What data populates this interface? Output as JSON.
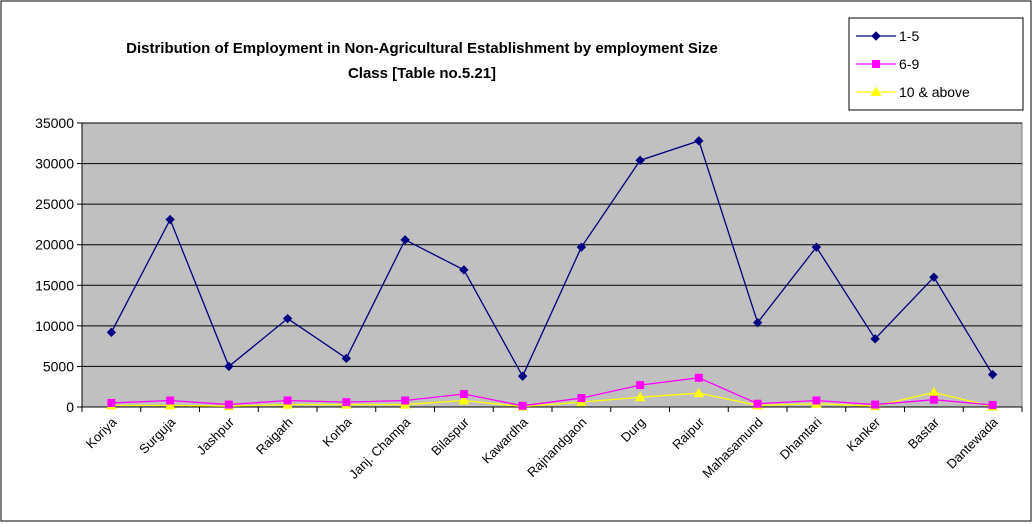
{
  "chart_data": {
    "type": "line",
    "title_line1": "Distribution of Employment in Non-Agricultural Establishment by employment Size",
    "title_line2": "Class [Table no.5.21]",
    "xlabel": "",
    "ylabel": "",
    "categories": [
      "Koriya",
      "Surguja",
      "Jashpur",
      "Raigarh",
      "Korba",
      "Janj. Champa",
      "Bilaspur",
      "Kawardha",
      "Rajnandgaon",
      "Durg",
      "Raipur",
      "Mahasamund",
      "Dhamtari",
      "Kanker",
      "Bastar",
      "Dantewada"
    ],
    "ylim": [
      0,
      35000
    ],
    "yticks": [
      "0",
      "5000",
      "10000",
      "15000",
      "20000",
      "25000",
      "30000",
      "35000"
    ],
    "grid": true,
    "legend_position": "top-right",
    "series": [
      {
        "name": "1-5",
        "color": "#000080",
        "marker": "diamond",
        "values": [
          9200,
          23100,
          5000,
          10900,
          6000,
          20600,
          16900,
          3800,
          19700,
          30400,
          32800,
          10400,
          19700,
          8400,
          16000,
          4000
        ]
      },
      {
        "name": "6-9",
        "color": "#FF00FF",
        "marker": "square",
        "values": [
          500,
          800,
          300,
          800,
          600,
          800,
          1600,
          150,
          1100,
          2700,
          3600,
          400,
          800,
          300,
          900,
          250
        ]
      },
      {
        "name": "10 & above",
        "color": "#FFFF00",
        "marker": "triangle",
        "values": [
          200,
          200,
          100,
          300,
          300,
          300,
          800,
          50,
          600,
          1200,
          1700,
          200,
          400,
          100,
          1800,
          50
        ]
      }
    ]
  }
}
